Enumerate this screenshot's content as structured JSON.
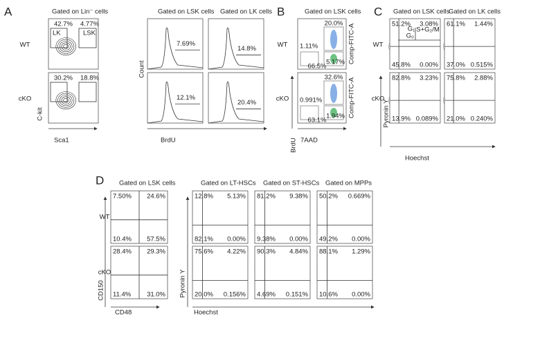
{
  "panels": {
    "A": {
      "letter": "A",
      "rows": [
        "WT",
        "cKO"
      ],
      "lin": {
        "title": "Gated on Lin⁻ cells",
        "gates": [
          "LK",
          "LSK"
        ],
        "plots": [
          [
            "42.7%",
            "4.77%"
          ],
          [
            "30.2%",
            "18.8%"
          ]
        ],
        "x_label": "Sca1",
        "y_label": "C-kit"
      },
      "hist": {
        "titles": [
          "Gated on LSK cells",
          "Gated on LK cells"
        ],
        "plots": [
          [
            "7.69%",
            "14.8%"
          ],
          [
            "12.1%",
            "20.4%"
          ]
        ],
        "x_label": "BrdU",
        "y_label": "Count"
      }
    },
    "B": {
      "letter": "B",
      "title": "Gated on LSK cells",
      "rows": [
        "WT",
        "cKO"
      ],
      "plots": [
        [
          "20.0%",
          "1.11%",
          "5.17%",
          "66.5%"
        ],
        [
          "32.6%",
          "0.991%",
          "1.94%",
          "63.1%"
        ]
      ],
      "fitc_labels": [
        "Comp-FITC-A",
        "Comp-FITC-A"
      ],
      "x_label": "7AAD",
      "y_label": "BrdU"
    },
    "C": {
      "letter": "C",
      "titles": [
        "Gated on LSK cells",
        "Gated on LK cells"
      ],
      "rows": [
        "WT",
        "cKO"
      ],
      "gates": [
        "G₁",
        "G₀",
        "S+G₂/M"
      ],
      "plots": [
        [
          [
            "51.2%",
            "3.08%",
            "45.8%",
            "0.00%"
          ],
          [
            "61.1%",
            "1.44%",
            "37.0%",
            "0.515%"
          ]
        ],
        [
          [
            "82.8%",
            "3.23%",
            "13.9%",
            "0.089%"
          ],
          [
            "75.8%",
            "2.88%",
            "21.0%",
            "0.240%"
          ]
        ]
      ],
      "x_label": "Hoechst",
      "y_label": "Pyronin Y"
    },
    "D": {
      "letter": "D",
      "rows": [
        "WT",
        "cKO"
      ],
      "lsk": {
        "title": "Gated on LSK cells",
        "plots": [
          [
            "7.50%",
            "24.6%",
            "10.4%",
            "57.5%"
          ],
          [
            "28.4%",
            "29.3%",
            "11.4%",
            "31.0%"
          ]
        ],
        "x_label": "CD48",
        "y_label": "CD150"
      },
      "sub": {
        "titles": [
          "Gated on LT-HSCs",
          "Gated on ST-HSCs",
          "Gated on MPPs"
        ],
        "plots": [
          [
            [
              "12.8%",
              "5.13%",
              "82.1%",
              "0.00%"
            ],
            [
              "81.2%",
              "9.38%",
              "9.38%",
              "0.00%"
            ],
            [
              "50.2%",
              "0.669%",
              "49.2%",
              "0.00%"
            ]
          ],
          [
            [
              "75.6%",
              "4.22%",
              "20.0%",
              "0.156%"
            ],
            [
              "90.3%",
              "4.84%",
              "4.69%",
              "0.151%"
            ],
            [
              "88.1%",
              "1.29%",
              "10.6%",
              "0.00%"
            ]
          ]
        ],
        "x_label": "Hoechst",
        "y_label": "Pyronin Y"
      }
    }
  }
}
